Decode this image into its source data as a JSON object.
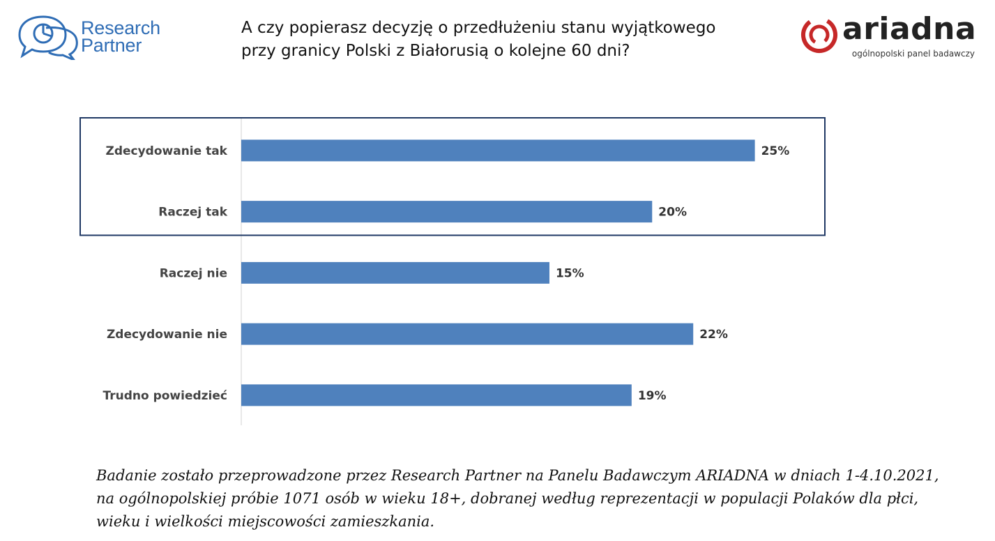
{
  "logos": {
    "research_partner": {
      "line1": "Research",
      "line2": "Partner",
      "color": "#2f6db5"
    },
    "ariadna": {
      "name": "ariadna",
      "subtitle": "ogólnopolski panel badawczy",
      "accent": "#c62828"
    }
  },
  "title": "A czy popierasz decyzję o przedłużeniu stanu wyjątkowego\nprzy granicy Polski z Białorusią o kolejne 60 dni?",
  "chart_data": {
    "type": "bar",
    "orientation": "horizontal",
    "categories": [
      "Zdecydowanie tak",
      "Raczej tak",
      "Raczej nie",
      "Zdecydowanie nie",
      "Trudno powiedzieć"
    ],
    "values": [
      25,
      20,
      15,
      22,
      19
    ],
    "value_labels": [
      "25%",
      "20%",
      "15%",
      "22%",
      "19%"
    ],
    "unit": "%",
    "xlim": [
      0,
      28
    ],
    "bar_color": "#4f81bd",
    "highlight_box": {
      "categories": [
        "Zdecydowanie tak",
        "Raczej tak"
      ],
      "color": "#1f3864"
    },
    "grid": false,
    "legend": "none"
  },
  "footnote": "Badanie zostało przeprowadzone przez Research Partner na Panelu Badawczym ARIADNA w dniach 1-4.10.2021,\nna ogólnopolskiej próbie 1071 osób w wieku 18+, dobranej według reprezentacji w populacji Polaków dla płci,\nwieku i wielkości miejscowości zamieszkania."
}
